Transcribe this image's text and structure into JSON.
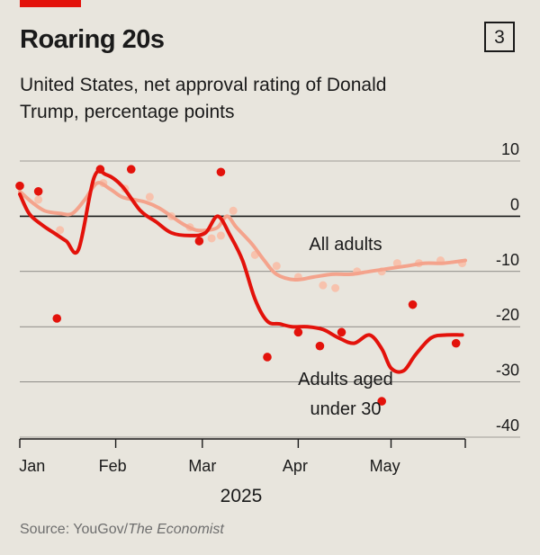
{
  "header": {
    "title": "Roaring 20s",
    "chart_number": "3",
    "subtitle": "United States, net approval rating of Donald Trump, percentage points"
  },
  "footer": {
    "source_prefix": "Source: YouGov/",
    "source_publication": "The Economist"
  },
  "colors": {
    "background": "#e8e5dd",
    "under30": "#e3120b",
    "all_adults_line": "#f4a38c",
    "all_adults_dots": "#f7c2ad",
    "grid": "#1a1a1a",
    "brand": "#e3120b"
  },
  "chart_data": {
    "type": "line",
    "title": "Roaring 20s",
    "subtitle": "United States, net approval rating of Donald Trump, percentage points",
    "ylabel": "",
    "xlabel": "2025",
    "y_axis_position": "right",
    "ylim": [
      -40,
      10
    ],
    "yticks": [
      10,
      0,
      -10,
      -20,
      -30,
      -40
    ],
    "yticks_labels": [
      "10",
      "0",
      "-10",
      "-20",
      "-30",
      "-40"
    ],
    "xlim": [
      "2025-01-01",
      "2025-05-25"
    ],
    "xtick_dates": [
      "2025-01-01",
      "2025-02-01",
      "2025-03-01",
      "2025-04-01",
      "2025-05-01",
      "2025-05-25"
    ],
    "month_labels": [
      {
        "label": "Jan",
        "date": "2025-01-05"
      },
      {
        "label": "Feb",
        "date": "2025-01-31"
      },
      {
        "label": "Mar",
        "date": "2025-03-01"
      },
      {
        "label": "Apr",
        "date": "2025-03-31"
      },
      {
        "label": "May",
        "date": "2025-04-29"
      }
    ],
    "year_label": "2025",
    "grid": true,
    "series": [
      {
        "name": "All adults",
        "role": "smoothed",
        "x": [
          "2025-01-01",
          "2025-01-05",
          "2025-01-09",
          "2025-01-14",
          "2025-01-18",
          "2025-01-22",
          "2025-01-26",
          "2025-01-30",
          "2025-02-03",
          "2025-02-07",
          "2025-02-11",
          "2025-02-15",
          "2025-02-19",
          "2025-02-23",
          "2025-02-27",
          "2025-03-03",
          "2025-03-06",
          "2025-03-09",
          "2025-03-12",
          "2025-03-17",
          "2025-03-21",
          "2025-03-25",
          "2025-03-31",
          "2025-04-06",
          "2025-04-12",
          "2025-04-18",
          "2025-04-24",
          "2025-04-30",
          "2025-05-06",
          "2025-05-12",
          "2025-05-18",
          "2025-05-25"
        ],
        "values": [
          4.5,
          2.5,
          1,
          0.5,
          0.5,
          3,
          6,
          5,
          3.5,
          3,
          2.5,
          1.5,
          0,
          -1.5,
          -2.5,
          -2.5,
          -2,
          0,
          -2,
          -5,
          -8,
          -10.5,
          -11.5,
          -11,
          -10.5,
          -10.5,
          -10,
          -9.5,
          -9,
          -8.5,
          -8.5,
          -8
        ]
      },
      {
        "name": "All adults",
        "role": "polls",
        "x": [
          "2025-01-01",
          "2025-01-07",
          "2025-01-14",
          "2025-01-28",
          "2025-02-04",
          "2025-02-12",
          "2025-02-19",
          "2025-02-25",
          "2025-03-04",
          "2025-03-07",
          "2025-03-11",
          "2025-03-18",
          "2025-03-25",
          "2025-04-01",
          "2025-04-09",
          "2025-04-13",
          "2025-04-20",
          "2025-04-28",
          "2025-05-03",
          "2025-05-10",
          "2025-05-17",
          "2025-05-24"
        ],
        "values": [
          5.5,
          3,
          -2.5,
          6,
          5,
          3.5,
          0,
          -2,
          -4,
          -3.5,
          1,
          -7,
          -9,
          -11,
          -12.5,
          -13,
          -10,
          -10,
          -8.5,
          -8.5,
          -8,
          -8.5
        ]
      },
      {
        "name": "Adults aged under 30",
        "role": "smoothed",
        "x": [
          "2025-01-01",
          "2025-01-04",
          "2025-01-08",
          "2025-01-12",
          "2025-01-16",
          "2025-01-20",
          "2025-01-25",
          "2025-01-29",
          "2025-02-03",
          "2025-02-09",
          "2025-02-14",
          "2025-02-19",
          "2025-02-25",
          "2025-03-02",
          "2025-03-06",
          "2025-03-10",
          "2025-03-14",
          "2025-03-18",
          "2025-03-22",
          "2025-03-26",
          "2025-03-30",
          "2025-04-04",
          "2025-04-09",
          "2025-04-14",
          "2025-04-19",
          "2025-04-24",
          "2025-04-28",
          "2025-05-01",
          "2025-05-05",
          "2025-05-09",
          "2025-05-14",
          "2025-05-19",
          "2025-05-24"
        ],
        "values": [
          4,
          0.5,
          -1.5,
          -3,
          -4.5,
          -6,
          7,
          7.5,
          5.5,
          1,
          -1,
          -3,
          -3.5,
          -3,
          0,
          -3.5,
          -8,
          -15,
          -19,
          -19.5,
          -20,
          -20,
          -20.5,
          -22,
          -23,
          -21.5,
          -24,
          -27.5,
          -28,
          -25,
          -22,
          -21.5,
          -21.5
        ]
      },
      {
        "name": "Adults aged under 30",
        "role": "polls",
        "x": [
          "2025-01-01",
          "2025-01-07",
          "2025-01-13",
          "2025-01-27",
          "2025-02-06",
          "2025-02-28",
          "2025-03-07",
          "2025-03-22",
          "2025-04-01",
          "2025-04-08",
          "2025-04-15",
          "2025-04-28",
          "2025-05-08",
          "2025-05-22"
        ],
        "values": [
          5.5,
          4.5,
          -18.5,
          8.5,
          8.5,
          -4.5,
          8,
          -25.5,
          -21,
          -23.5,
          -21,
          -33.5,
          -16,
          -23
        ]
      }
    ],
    "annotations": [
      {
        "text": "All adults",
        "series": "All adults"
      },
      {
        "text": "Adults aged",
        "series": "Adults aged under 30"
      },
      {
        "text": "under 30",
        "series": "Adults aged under 30"
      }
    ]
  }
}
